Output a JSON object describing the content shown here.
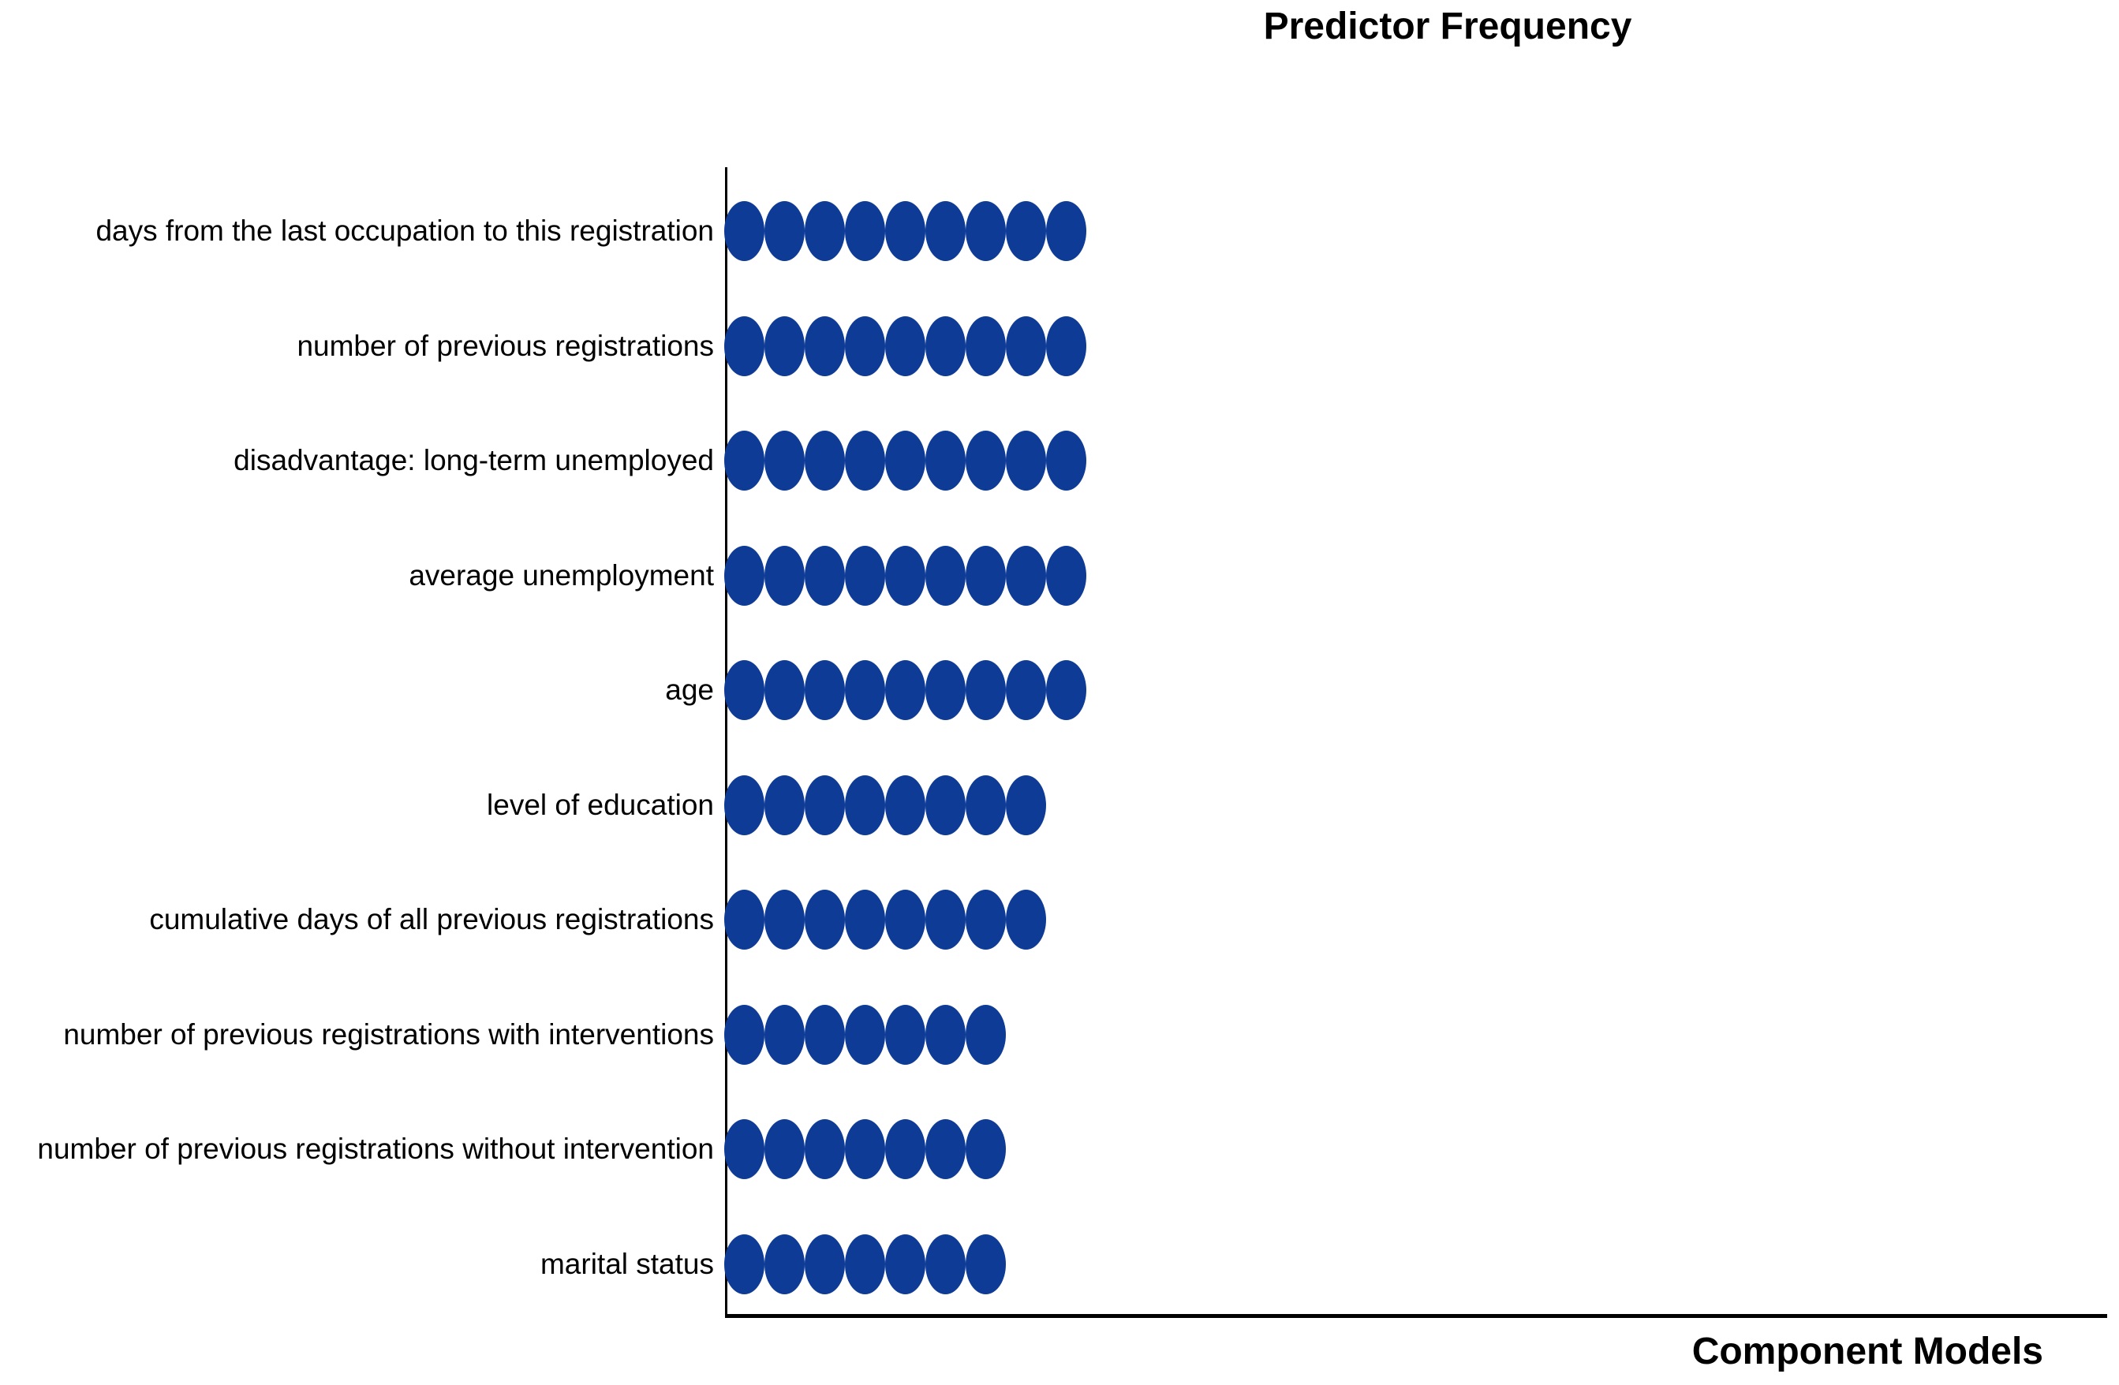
{
  "chart_data": {
    "type": "scatter",
    "subtype": "dot-frequency-plot",
    "title": "Predictor Frequency",
    "xlabel": "Component Models",
    "ylabel": "",
    "categories": [
      "days from the last occupation to this registration",
      "number of previous registrations",
      "disadvantage: long-term unemployed",
      "average unemployment",
      "age",
      "level of education",
      "cumulative days of all previous registrations",
      "number of previous registrations with interventions",
      "number of previous registrations without intervention",
      "marital status"
    ],
    "values": [
      9,
      9,
      9,
      9,
      9,
      8,
      8,
      7,
      7,
      7
    ],
    "x_axis": {
      "range": [
        0,
        9
      ],
      "tick_labels_visible": false
    },
    "y_axis": {
      "tick_labels_visible": true
    },
    "grid": false,
    "legend": "none",
    "colors": {
      "dot": "#0D3B96",
      "axis": "#000000",
      "text": "#000000",
      "background": "#FFFFFF"
    }
  }
}
